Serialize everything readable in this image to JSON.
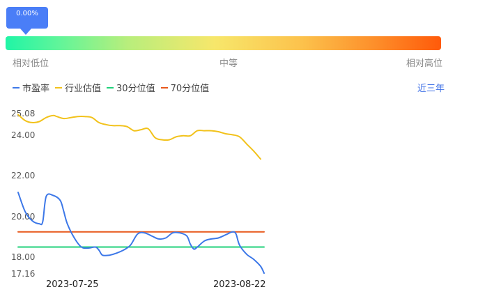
{
  "gauge": {
    "marker_value": "0.00%",
    "position": 0.0,
    "labels": {
      "low": "相对低位",
      "mid": "中等",
      "high": "相对高位"
    },
    "gradient_colors": [
      "#20f5a6",
      "#f7e76b",
      "#ff5a0a"
    ]
  },
  "legend": [
    {
      "name": "市盈率",
      "color": "#3d78e8"
    },
    {
      "name": "行业估值",
      "color": "#f2c21b"
    },
    {
      "name": "30分位值",
      "color": "#1fd17a"
    },
    {
      "name": "70分位值",
      "color": "#e8581c"
    }
  ],
  "period_link": "近三年",
  "chart_data": {
    "type": "line",
    "x_tick_labels": [
      "2023-07-25",
      "2023-08-22"
    ],
    "y_tick_labels": [
      "25.08",
      "24.00",
      "22.00",
      "20.00",
      "18.00",
      "17.16"
    ],
    "ylim": [
      17.16,
      25.08
    ],
    "grid": false,
    "n_points": 71,
    "series": [
      {
        "name": "市盈率",
        "color": "#3d78e8",
        "points": [
          [
            0,
            21.15
          ],
          [
            2,
            20.2
          ],
          [
            4,
            19.75
          ],
          [
            6,
            19.6
          ],
          [
            7,
            19.7
          ],
          [
            8,
            20.95
          ],
          [
            10,
            21.0
          ],
          [
            12,
            20.75
          ],
          [
            13,
            20.2
          ],
          [
            14,
            19.6
          ],
          [
            16,
            18.9
          ],
          [
            18,
            18.45
          ],
          [
            20,
            18.4
          ],
          [
            22,
            18.45
          ],
          [
            23,
            18.3
          ],
          [
            24,
            18.05
          ],
          [
            26,
            18.05
          ],
          [
            28,
            18.15
          ],
          [
            30,
            18.3
          ],
          [
            32,
            18.55
          ],
          [
            34,
            19.1
          ],
          [
            36,
            19.15
          ],
          [
            38,
            19.0
          ],
          [
            40,
            18.85
          ],
          [
            42,
            18.9
          ],
          [
            44,
            19.15
          ],
          [
            46,
            19.15
          ],
          [
            48,
            19.0
          ],
          [
            49,
            18.6
          ],
          [
            50,
            18.35
          ],
          [
            51,
            18.45
          ],
          [
            53,
            18.75
          ],
          [
            55,
            18.85
          ],
          [
            57,
            18.9
          ],
          [
            59,
            19.05
          ],
          [
            61,
            19.2
          ],
          [
            62,
            19.1
          ],
          [
            63,
            18.55
          ],
          [
            65,
            18.1
          ],
          [
            67,
            17.85
          ],
          [
            69,
            17.5
          ],
          [
            70,
            17.16
          ]
        ]
      },
      {
        "name": "行业估值",
        "color": "#f2c21b",
        "points": [
          [
            0,
            25.0
          ],
          [
            2,
            24.7
          ],
          [
            4,
            24.6
          ],
          [
            6,
            24.65
          ],
          [
            8,
            24.85
          ],
          [
            10,
            24.95
          ],
          [
            11,
            24.9
          ],
          [
            13,
            24.8
          ],
          [
            15,
            24.85
          ],
          [
            17,
            24.9
          ],
          [
            19,
            24.9
          ],
          [
            21,
            24.85
          ],
          [
            23,
            24.6
          ],
          [
            25,
            24.5
          ],
          [
            27,
            24.45
          ],
          [
            29,
            24.45
          ],
          [
            31,
            24.4
          ],
          [
            33,
            24.2
          ],
          [
            35,
            24.25
          ],
          [
            37,
            24.3
          ],
          [
            39,
            23.85
          ],
          [
            41,
            23.75
          ],
          [
            43,
            23.75
          ],
          [
            45,
            23.9
          ],
          [
            47,
            23.95
          ],
          [
            49,
            23.95
          ],
          [
            51,
            24.2
          ],
          [
            53,
            24.2
          ],
          [
            55,
            24.2
          ],
          [
            57,
            24.15
          ],
          [
            59,
            24.05
          ],
          [
            61,
            24.0
          ],
          [
            63,
            23.9
          ],
          [
            65,
            23.55
          ],
          [
            67,
            23.2
          ],
          [
            69,
            22.8
          ]
        ]
      },
      {
        "name": "30分位值",
        "color": "#1fd17a",
        "points": [
          [
            0,
            18.45
          ],
          [
            70,
            18.45
          ]
        ]
      },
      {
        "name": "70分位值",
        "color": "#e8581c",
        "points": [
          [
            0,
            19.2
          ],
          [
            70,
            19.2
          ]
        ]
      }
    ]
  }
}
